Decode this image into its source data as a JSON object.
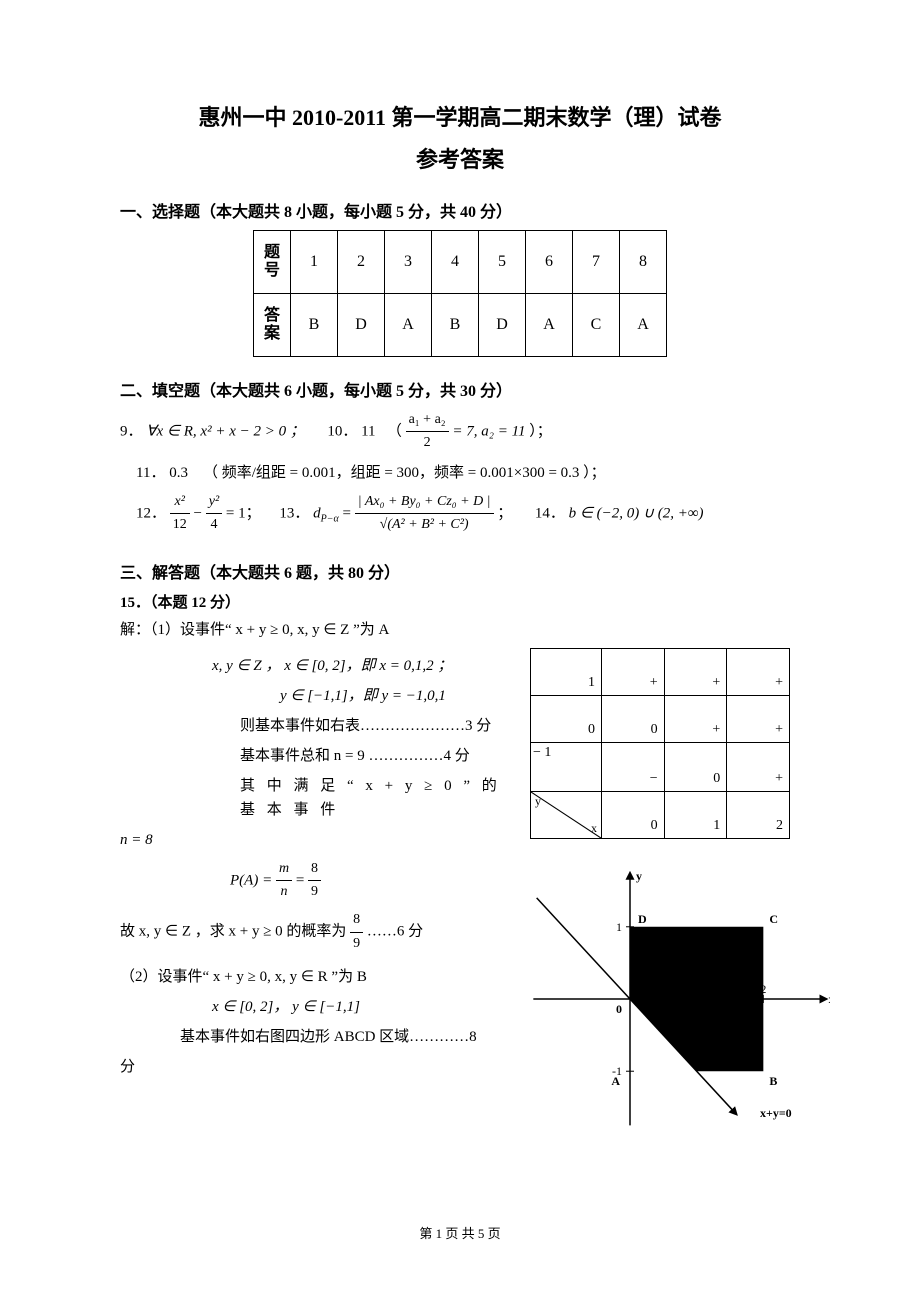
{
  "title": "惠州一中 2010-2011 第一学期高二期末数学（理）试卷",
  "subtitle": "参考答案",
  "section1": {
    "heading": "一、选择题（本大题共 8 小题，每小题 5 分，共 40 分）",
    "row_label_1": "题号",
    "row_label_1a": "题",
    "row_label_1b": "号",
    "row_label_2a": "答",
    "row_label_2b": "案",
    "cols": [
      "1",
      "2",
      "3",
      "4",
      "5",
      "6",
      "7",
      "8"
    ],
    "answers": [
      "B",
      "D",
      "A",
      "B",
      "D",
      "A",
      "C",
      "A"
    ]
  },
  "section2": {
    "heading": "二、填空题（本大题共 6 小题，每小题 5 分，共 30 分）",
    "q9_prefix": "9．",
    "q9_expr": "∀x ∈ R, x² + x − 2 > 0 ；",
    "q10_prefix": "10．",
    "q10_val": "11",
    "q10_paren_open": "（",
    "q10_frac_num": "a₁ + a₂",
    "q10_frac_den": "2",
    "q10_eq": " = 7, a₂ = 11",
    "q10_paren_close": "）；",
    "q11_prefix": "11．",
    "q11_val": "0.3",
    "q11_explain": "（ 频率/组距 = 0.001，组距 = 300，频率 = 0.001×300 = 0.3 ）；",
    "q12_prefix": "12．",
    "q12_t1_num": "x²",
    "q12_t1_den": "12",
    "q12_minus": " − ",
    "q12_t2_num": "y²",
    "q12_t2_den": "4",
    "q12_tail": " = 1；",
    "q13_prefix": "13．",
    "q13_lhs": "d",
    "q13_lhs_sub": "P−α",
    "q13_eq": " = ",
    "q13_num": "| Ax₀ + By₀ + Cz₀ + D |",
    "q13_den": "√(A² + B² + C²)",
    "q13_tail": " ；",
    "q14_prefix": "14．",
    "q14_expr": "b ∈ (−2, 0) ∪ (2, +∞)"
  },
  "section3": {
    "heading": "三、解答题（本大题共 6 题，共 80 分）",
    "q15_head": "15．（本题 12 分）",
    "l_solve": "解：（1）设事件“ x + y ≥ 0, x, y ∈ Z ”为 A",
    "l_xyz": "x, y ∈ Z ， x ∈ [0, 2]，即 x = 0,1,2 ；",
    "l_y": "y ∈ [−1,1]，即 y = −1,0,1",
    "l_table_ref": "则基本事件如右表…………………3 分",
    "l_total": "基本事件总和 n = 9 ……………4 分",
    "l_satisfy": "其 中 满 足 “ x + y ≥ 0 ” 的 基 本 事 件",
    "l_n8": "n = 8",
    "l_PA_lhs": "P(A) = ",
    "l_PA_num1": "m",
    "l_PA_den1": "n",
    "l_PA_eq": " = ",
    "l_PA_num2": "8",
    "l_PA_den2": "9",
    "l_prob_pre": "故 x, y ∈ Z ，求 x + y ≥ 0 的概率为 ",
    "l_prob_num": "8",
    "l_prob_den": "9",
    "l_prob_tail": " ……6 分",
    "l_part2": "（2）设事件“ x + y ≥ 0, x, y ∈ R ”为 B",
    "l_domain": "x ∈ [0, 2]， y ∈ [−1,1]",
    "l_region": "基本事件如右图四边形 ABCD 区域…………8",
    "l_region2": "分"
  },
  "event_table": {
    "rows": [
      [
        "1",
        "+",
        "+",
        "+"
      ],
      [
        "0",
        "0",
        "+",
        "+"
      ],
      [
        "− 1",
        "−",
        "0",
        "+"
      ],
      [
        "",
        "0",
        "1",
        "2"
      ]
    ],
    "y_label": "y",
    "x_label": "x"
  },
  "chart": {
    "bg_color": "#000000",
    "axis_color": "#000000",
    "label_y": "y",
    "label_x": "x",
    "label_A": "A",
    "label_B": "B",
    "label_C": "C",
    "label_D": "D",
    "label_0": "0",
    "label_1y": "1",
    "label_m1": "-1",
    "label_2x": "2",
    "line_label": "x+y=0",
    "x_range": [
      -1.5,
      3.0
    ],
    "y_range": [
      -1.8,
      1.8
    ],
    "region_pts": [
      [
        0,
        1
      ],
      [
        2,
        1
      ],
      [
        2,
        -1
      ],
      [
        1,
        -1
      ],
      [
        0,
        0
      ]
    ]
  },
  "page_num": "第 1 页 共 5 页"
}
